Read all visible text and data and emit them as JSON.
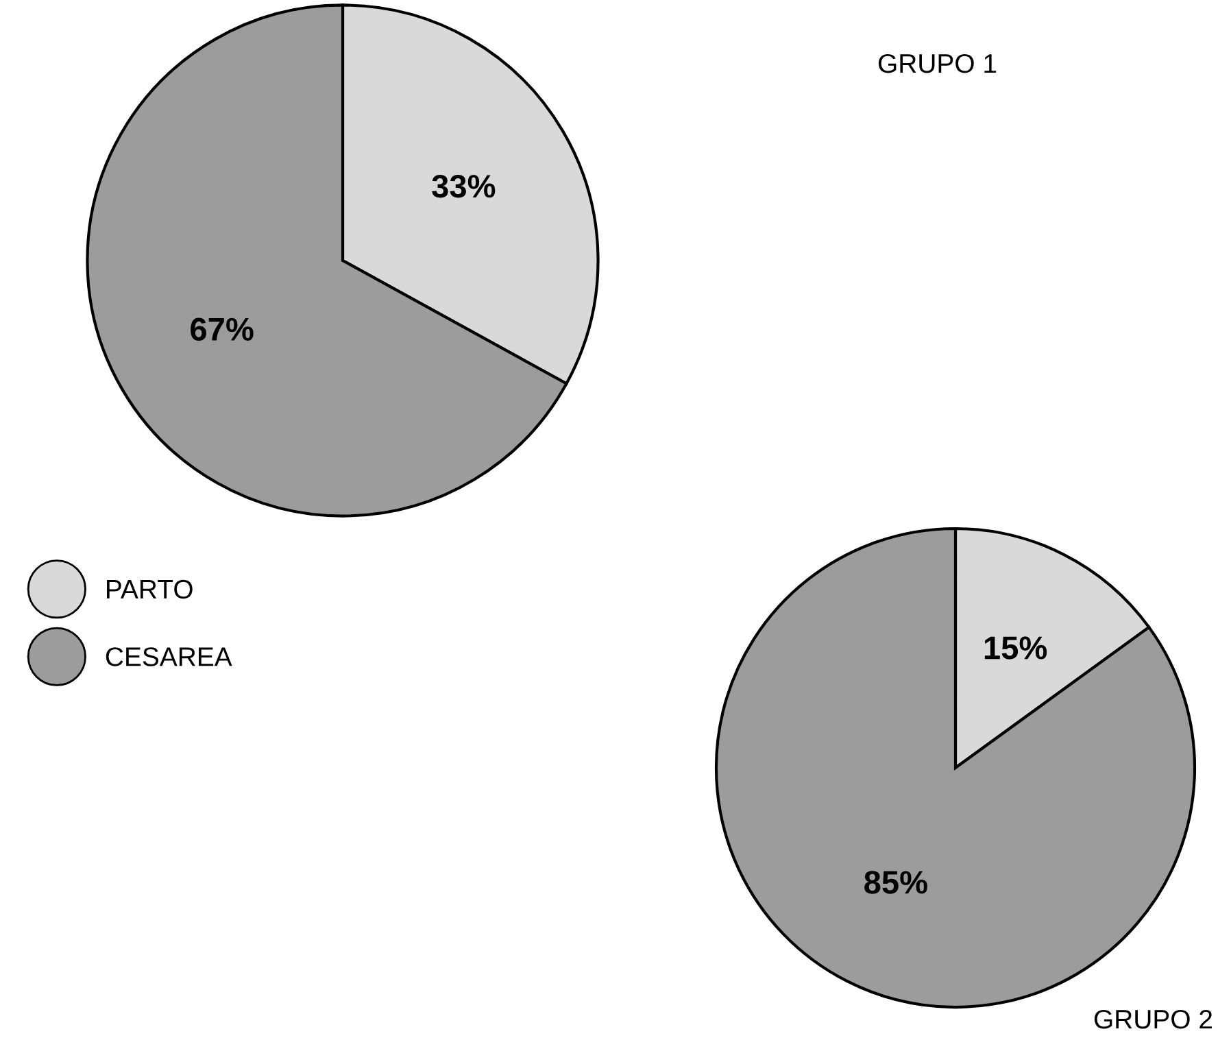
{
  "chart_data": [
    {
      "type": "pie",
      "title": "GRUPO 1",
      "categories": [
        "PARTO",
        "CESAREA"
      ],
      "values": [
        33,
        67
      ],
      "colors": [
        "#d9d9d9",
        "#9c9c9c"
      ],
      "value_labels": [
        "33%",
        "67%"
      ],
      "legend": "bottom left"
    },
    {
      "type": "pie",
      "title": "GRUPO 2",
      "categories": [
        null,
        null
      ],
      "values": [
        15,
        85
      ],
      "colors": [
        "#d9d9d9",
        "#9c9c9c"
      ],
      "value_labels": [
        "15%",
        "85%"
      ]
    }
  ]
}
